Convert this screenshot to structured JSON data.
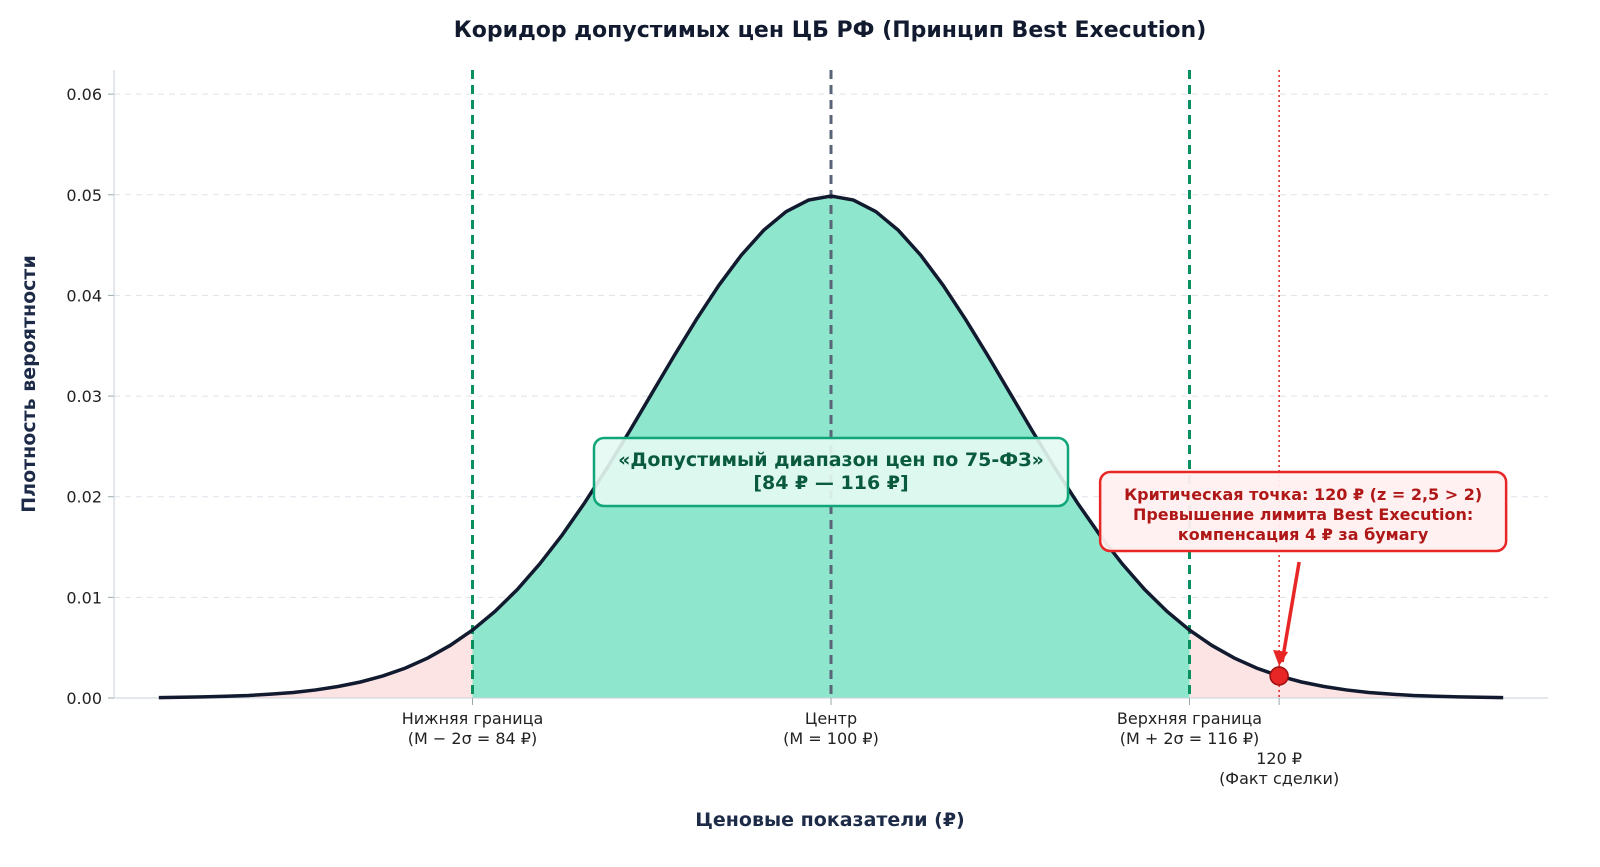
{
  "chart_data": {
    "type": "line",
    "title": "Коридор допустимых цен ЦБ РФ (Принцип Best Execution)",
    "x_label": "Ценовые показатели (₽)",
    "y_label": "Плотность вероятности",
    "series": [
      {
        "name": "Плотность",
        "color": "#111a2e",
        "x": [
          70,
          71,
          72,
          73,
          74,
          75,
          76,
          77,
          78,
          79,
          80,
          81,
          82,
          83,
          84,
          85,
          86,
          87,
          88,
          89,
          90,
          91,
          92,
          93,
          94,
          95,
          96,
          97,
          98,
          99,
          100,
          101,
          102,
          103,
          104,
          105,
          106,
          107,
          108,
          109,
          110,
          111,
          112,
          113,
          114,
          115,
          116,
          117,
          118,
          119,
          120,
          121,
          122,
          123,
          124,
          125,
          126,
          127,
          128,
          129,
          130
        ],
        "values": [
          4e-05,
          7e-05,
          0.00011,
          0.00017,
          0.00025,
          0.00038,
          0.00055,
          0.0008,
          0.00114,
          0.00159,
          0.00219,
          0.00297,
          0.00397,
          0.00522,
          0.00675,
          0.0086,
          0.01078,
          0.01332,
          0.01619,
          0.01938,
          0.02283,
          0.02648,
          0.03025,
          0.03401,
          0.03764,
          0.04102,
          0.04401,
          0.04648,
          0.04833,
          0.04948,
          0.04987,
          0.04948,
          0.04833,
          0.04648,
          0.04401,
          0.04102,
          0.03764,
          0.03401,
          0.03025,
          0.02648,
          0.02283,
          0.01938,
          0.01619,
          0.01332,
          0.01078,
          0.0086,
          0.00675,
          0.00522,
          0.00397,
          0.00297,
          0.00219,
          0.00159,
          0.00114,
          0.0008,
          0.00055,
          0.00038,
          0.00025,
          0.00017,
          0.00011,
          7e-05,
          4e-05
        ]
      }
    ],
    "vlines": [
      {
        "x": 84,
        "color": "#0a8f5e",
        "style": "dashed"
      },
      {
        "x": 100,
        "color": "#5a6478",
        "style": "dashed"
      },
      {
        "x": 116,
        "color": "#0a8f5e",
        "style": "dashed"
      },
      {
        "x": 120,
        "color": "#e02424",
        "style": "dotted"
      }
    ],
    "fill_inside_color": "#8ee6cd",
    "fill_outside_color": "#fde4e4",
    "point": {
      "x": 120,
      "y": 0.00219,
      "color": "#e82626"
    },
    "xlim": [
      68,
      132
    ],
    "ylim": [
      0,
      0.062
    ],
    "xticks": [
      {
        "value": 84,
        "label": "Нижняя граница\n(M − 2σ = 84 ₽)"
      },
      {
        "value": 100,
        "label": "Центр\n(M = 100 ₽)"
      },
      {
        "value": 116,
        "label": "Верхняя граница\n(M + 2σ = 116 ₽)"
      },
      {
        "value": 120,
        "label": "120 ₽\n(Факт сделки)"
      }
    ],
    "yticks": [
      {
        "value": 0,
        "label": "0.00"
      },
      0.01,
      0.02,
      0.03,
      0.04,
      0.05,
      0.06
    ],
    "grid": true,
    "annotations": [
      {
        "text": "«Допустимый диапазон цен по 75-ФЗ»\n[84 ₽ — 116 ₽]",
        "color": "#0a5a3e"
      },
      {
        "text": "Критическая точка: 120 ₽ (z = 2,5 > 2)\nПревышение лимита Best Execution:\nкомпенсация 4 ₽ за бумагу",
        "color": "#b01818"
      }
    ]
  }
}
